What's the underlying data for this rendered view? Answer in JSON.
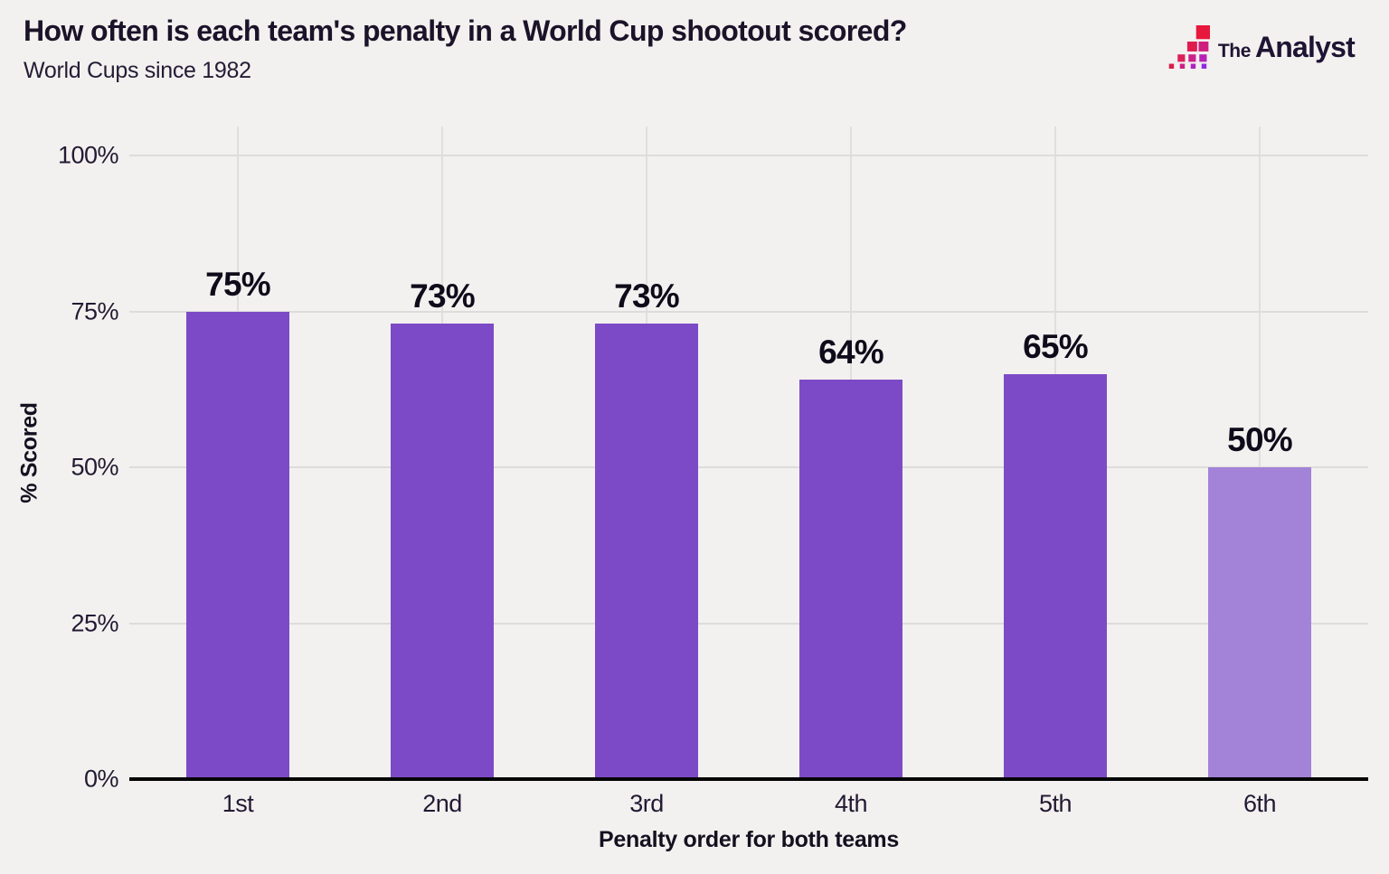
{
  "header": {
    "title": "How often is each team's penalty in a World Cup shootout scored?",
    "subtitle": "World Cups since 1982",
    "logo": {
      "the": "The",
      "analyst": "Analyst"
    }
  },
  "chart_data": {
    "type": "bar",
    "title": "How often is each team's penalty in a World Cup shootout scored?",
    "subtitle": "World Cups since 1982",
    "categories": [
      "1st",
      "2nd",
      "3rd",
      "4th",
      "5th",
      "6th"
    ],
    "values": [
      75,
      73,
      73,
      64,
      65,
      50
    ],
    "value_labels": [
      "75%",
      "73%",
      "73%",
      "64%",
      "65%",
      "50%"
    ],
    "xlabel": "Penalty order for both teams",
    "ylabel": "% Scored",
    "ylim": [
      0,
      100
    ],
    "yticks": [
      0,
      25,
      50,
      75,
      100
    ],
    "ytick_labels": [
      "0%",
      "25%",
      "50%",
      "75%",
      "100%"
    ],
    "grid": "light horizontal gridlines at each y tick and vertical gridline at each bar center",
    "legend": "none",
    "bar_colors": [
      "#7d4ac7",
      "#7d4ac7",
      "#7d4ac7",
      "#7d4ac7",
      "#7d4ac7",
      "#a283d8"
    ]
  },
  "colors": {
    "background": "#f2f1ef",
    "text_dark": "#1a1329",
    "bar_primary": "#7d4ac7",
    "bar_light": "#a283d8",
    "gridline": "#dedcda",
    "axis_line": "#050505",
    "logo_red": "#e8173d",
    "logo_magenta": "#cb2184",
    "logo_purple": "#8e2be2"
  }
}
